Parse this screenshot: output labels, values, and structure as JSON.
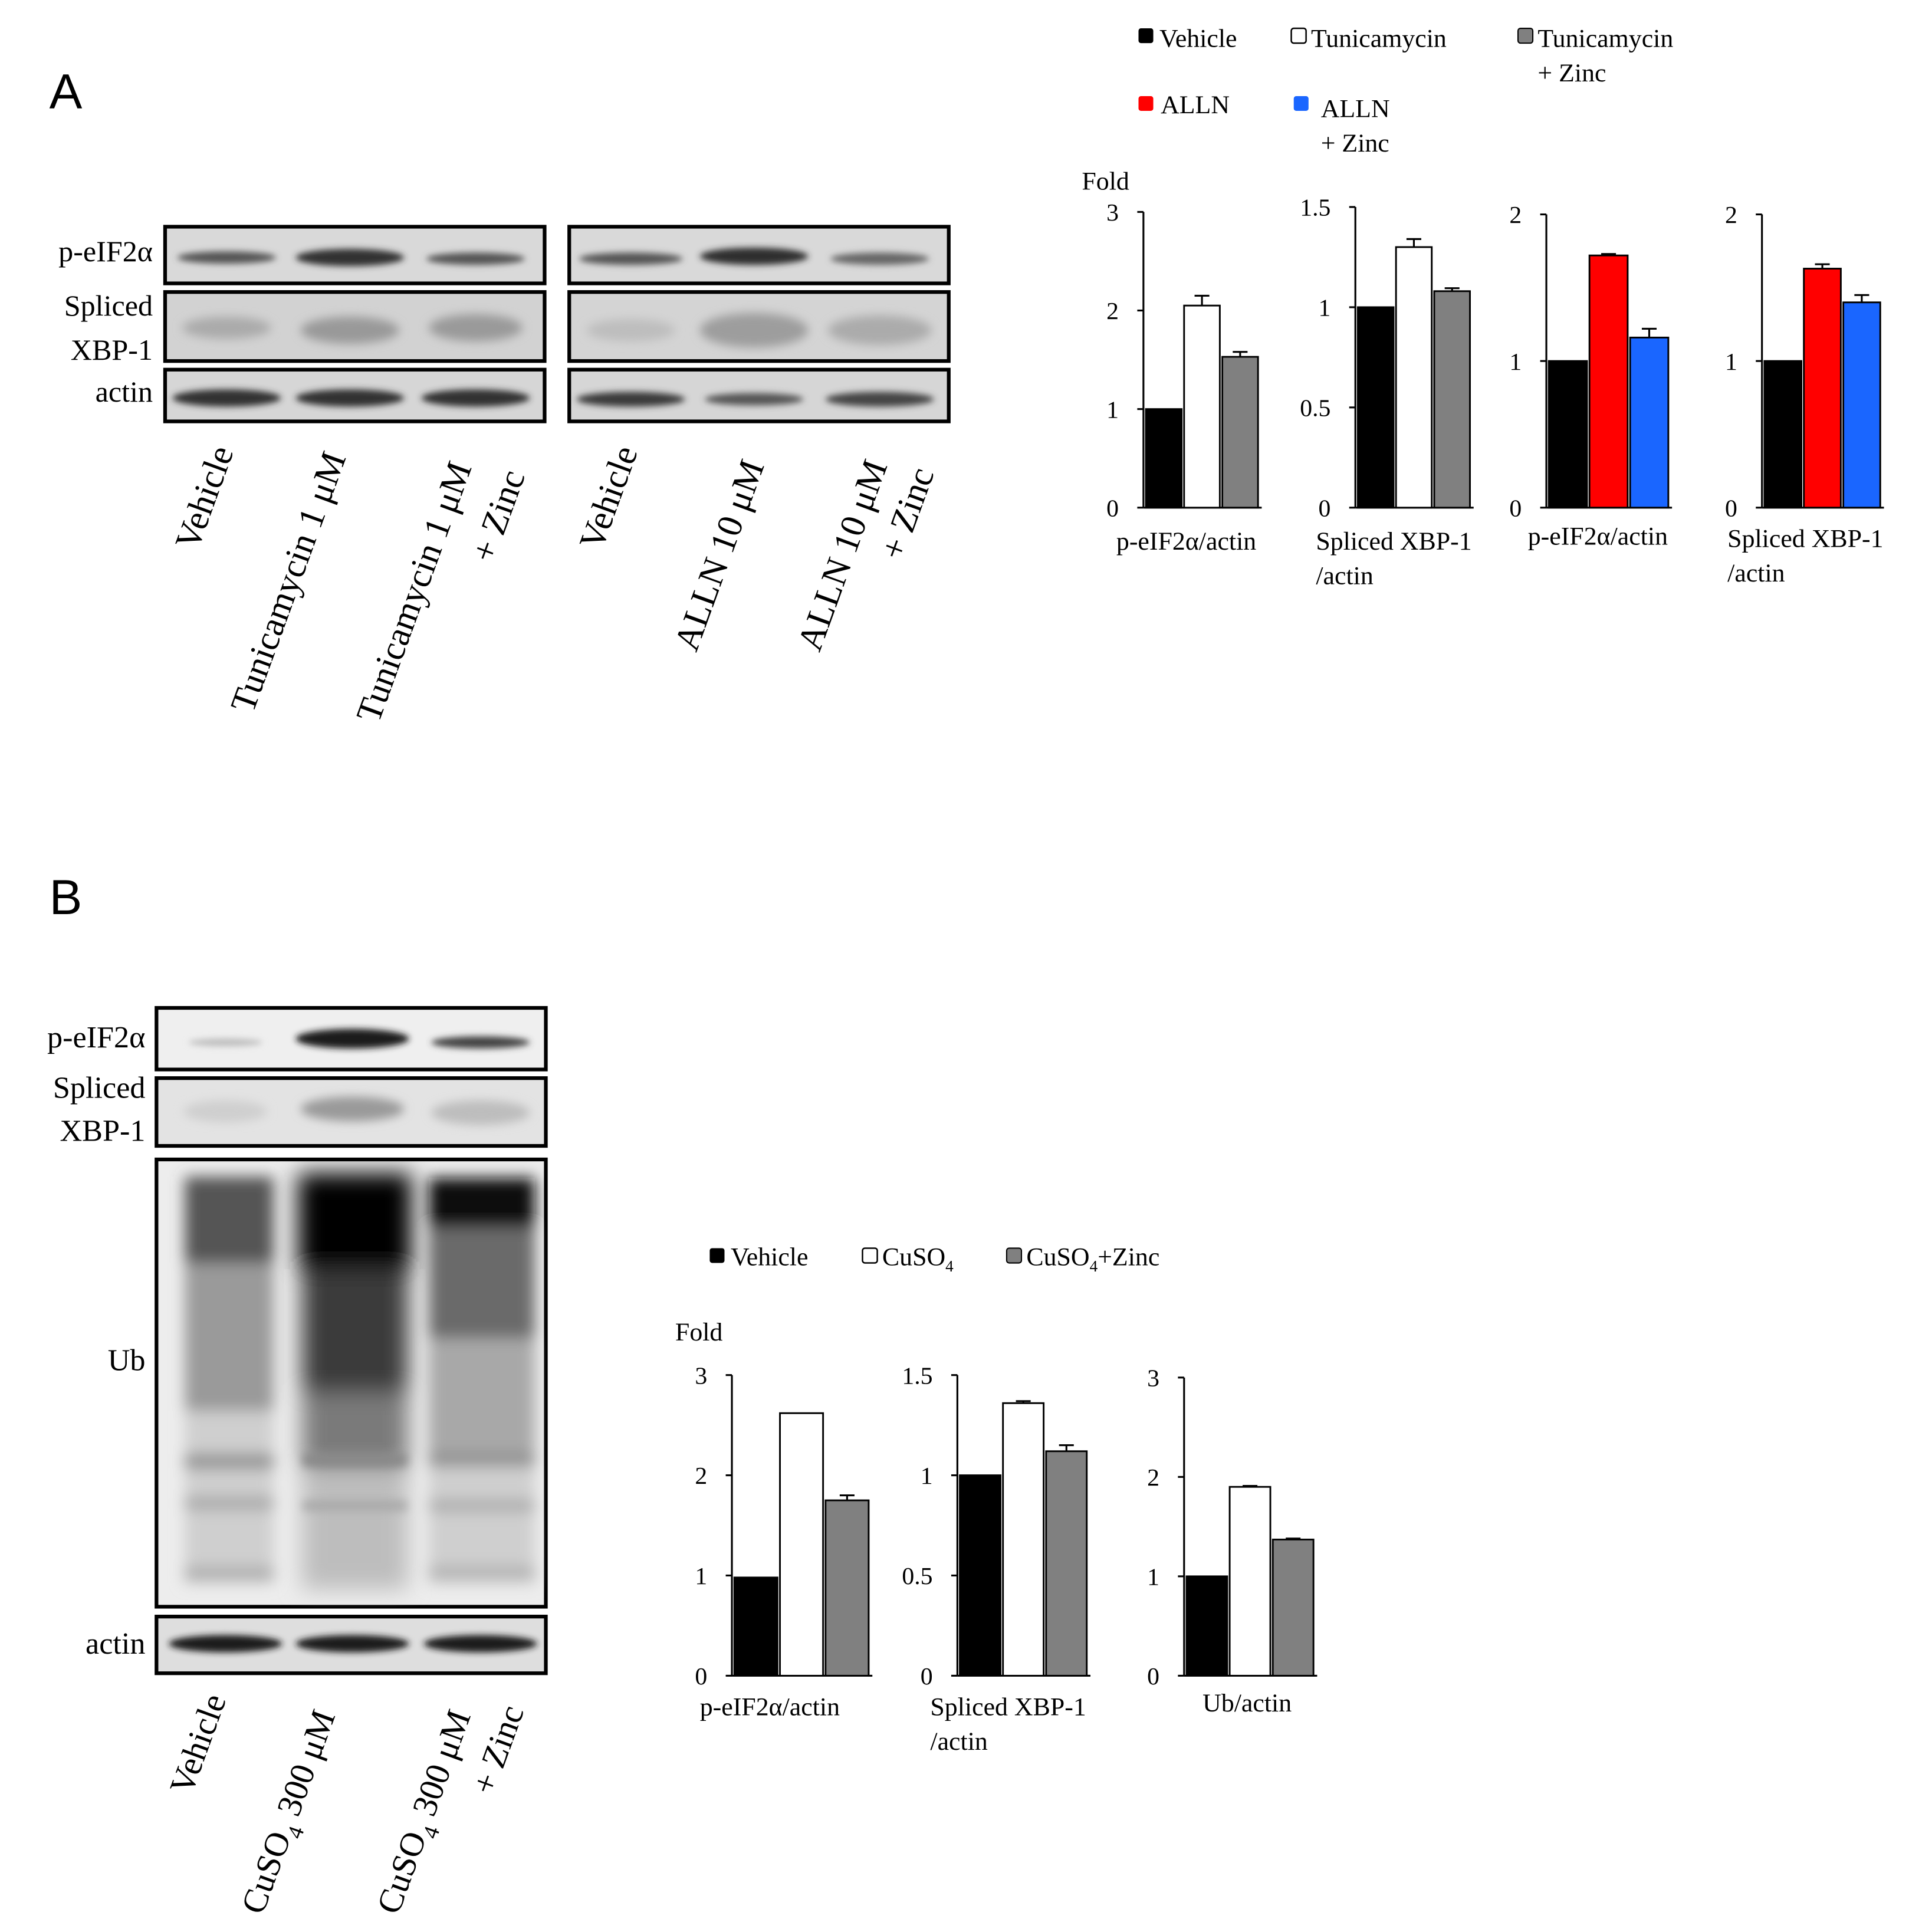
{
  "panel_a": {
    "letter": "A",
    "legend": {
      "vehicle": "Vehicle",
      "tunicamycin": "Tunicamycin",
      "tunicamycin_zinc_1": "Tunicamycin",
      "tunicamycin_zinc_2": "+ Zinc",
      "alln": "ALLN",
      "alln_zinc_1": "ALLN",
      "alln_zinc_2": "+ Zinc"
    },
    "blot": {
      "row_labels": {
        "peif2a": "p-eIF2α",
        "xbp_1": "Spliced",
        "xbp_2": "XBP-1",
        "actin": "actin"
      },
      "lanes_left": [
        "Vehicle",
        "Tunicamycin 1 μM",
        "Tunicamycin 1 μM",
        "+ Zinc"
      ],
      "lanes_right": [
        "Vehicle",
        "ALLN 10 μM",
        "ALLN 10 μM",
        "+ Zinc"
      ]
    }
  },
  "panel_b": {
    "letter": "B",
    "legend": {
      "vehicle": "Vehicle",
      "cuso4": "CuSO",
      "cuso4_sub": "4",
      "cuso4_zinc": "CuSO",
      "cuso4_zinc_sub": "4",
      "cuso4_zinc_tail": "+Zinc"
    },
    "blot": {
      "row_labels": {
        "peif2a": "p-eIF2α",
        "xbp_1": "Spliced",
        "xbp_2": "XBP-1",
        "ub": "Ub",
        "actin": "actin"
      },
      "lanes": {
        "vehicle": "Vehicle",
        "cuso4": "CuSO",
        "cuso4_sub": "4",
        "cuso4_tail": " 300 μM",
        "cuso4_zinc": "CuSO",
        "cuso4_zinc_sub": "4",
        "cuso4_zinc_tail": " 300 μM",
        "cuso4_zinc_2": "+ Zinc"
      }
    }
  },
  "colors": {
    "vehicle": "#000000",
    "treated": "#ffffff",
    "treated_zinc": "#808080",
    "alln": "#ff0000",
    "alln_zinc": "#1a66ff"
  },
  "chart_data": [
    {
      "type": "bar",
      "panel": "A",
      "ylabel": "Fold",
      "xlabel": "p-eIF2α/actin",
      "xlabel2": "",
      "ylim": [
        0,
        3
      ],
      "yticks": [
        0,
        1,
        2,
        3
      ],
      "series": [
        {
          "name": "Vehicle",
          "values": [
            1.0
          ],
          "error": [
            0
          ],
          "color": "#000000"
        },
        {
          "name": "Tunicamycin",
          "values": [
            2.05
          ],
          "error": [
            0.1
          ],
          "color": "#ffffff"
        },
        {
          "name": "Tunicamycin + Zinc",
          "values": [
            1.53
          ],
          "error": [
            0.05
          ],
          "color": "#808080"
        }
      ]
    },
    {
      "type": "bar",
      "panel": "A",
      "ylabel": "",
      "xlabel": "Spliced XBP-1",
      "xlabel2": "/actin",
      "ylim": [
        0,
        1.5
      ],
      "yticks": [
        "0",
        "0.5",
        "1",
        "1.5"
      ],
      "series": [
        {
          "name": "Vehicle",
          "values": [
            1.0
          ],
          "error": [
            0
          ],
          "color": "#000000"
        },
        {
          "name": "Tunicamycin",
          "values": [
            1.3
          ],
          "error": [
            0.04
          ],
          "color": "#ffffff"
        },
        {
          "name": "Tunicamycin + Zinc",
          "values": [
            1.08
          ],
          "error": [
            0.015
          ],
          "color": "#808080"
        }
      ]
    },
    {
      "type": "bar",
      "panel": "A",
      "ylabel": "",
      "xlabel": "p-eIF2α/actin",
      "xlabel2": "",
      "ylim": [
        0,
        2
      ],
      "yticks": [
        0,
        1,
        2
      ],
      "series": [
        {
          "name": "Vehicle",
          "values": [
            1.0
          ],
          "error": [
            0
          ],
          "color": "#000000"
        },
        {
          "name": "ALLN",
          "values": [
            1.72
          ],
          "error": [
            0.01
          ],
          "color": "#ff0000"
        },
        {
          "name": "ALLN + Zinc",
          "values": [
            1.16
          ],
          "error": [
            0.06
          ],
          "color": "#1a66ff"
        }
      ]
    },
    {
      "type": "bar",
      "panel": "A",
      "ylabel": "",
      "xlabel": "Spliced XBP-1",
      "xlabel2": "/actin",
      "ylim": [
        0,
        2
      ],
      "yticks": [
        0,
        1,
        2
      ],
      "series": [
        {
          "name": "Vehicle",
          "values": [
            1.0
          ],
          "error": [
            0
          ],
          "color": "#000000"
        },
        {
          "name": "ALLN",
          "values": [
            1.63
          ],
          "error": [
            0.03
          ],
          "color": "#ff0000"
        },
        {
          "name": "ALLN + Zinc",
          "values": [
            1.4
          ],
          "error": [
            0.05
          ],
          "color": "#1a66ff"
        }
      ]
    },
    {
      "type": "bar",
      "panel": "B",
      "ylabel": "Fold",
      "xlabel": "p-eIF2α/actin",
      "xlabel2": "",
      "ylim": [
        0,
        3
      ],
      "yticks": [
        0,
        1,
        2,
        3
      ],
      "series": [
        {
          "name": "Vehicle",
          "values": [
            0.98
          ],
          "error": [
            0
          ],
          "color": "#000000"
        },
        {
          "name": "CuSO4",
          "values": [
            2.62
          ],
          "error": [
            0
          ],
          "color": "#ffffff"
        },
        {
          "name": "CuSO4+Zinc",
          "values": [
            1.75
          ],
          "error": [
            0.05
          ],
          "color": "#808080"
        }
      ]
    },
    {
      "type": "bar",
      "panel": "B",
      "ylabel": "",
      "xlabel": "Spliced XBP-1",
      "xlabel2": "/actin",
      "ylim": [
        0,
        1.5
      ],
      "yticks": [
        "0",
        "0.5",
        "1",
        "1.5"
      ],
      "series": [
        {
          "name": "Vehicle",
          "values": [
            1.0
          ],
          "error": [
            0
          ],
          "color": "#000000"
        },
        {
          "name": "CuSO4",
          "values": [
            1.36
          ],
          "error": [
            0.01
          ],
          "color": "#ffffff"
        },
        {
          "name": "CuSO4+Zinc",
          "values": [
            1.12
          ],
          "error": [
            0.03
          ],
          "color": "#808080"
        }
      ]
    },
    {
      "type": "bar",
      "panel": "B",
      "ylabel": "",
      "xlabel": "Ub/actin",
      "xlabel2": "",
      "ylim": [
        0,
        3
      ],
      "yticks": [
        0,
        1,
        2,
        3
      ],
      "series": [
        {
          "name": "Vehicle",
          "values": [
            1.0
          ],
          "error": [
            0
          ],
          "color": "#000000"
        },
        {
          "name": "CuSO4",
          "values": [
            1.9
          ],
          "error": [
            0.01
          ],
          "color": "#ffffff"
        },
        {
          "name": "CuSO4+Zinc",
          "values": [
            1.37
          ],
          "error": [
            0.01
          ],
          "color": "#808080"
        }
      ]
    }
  ]
}
